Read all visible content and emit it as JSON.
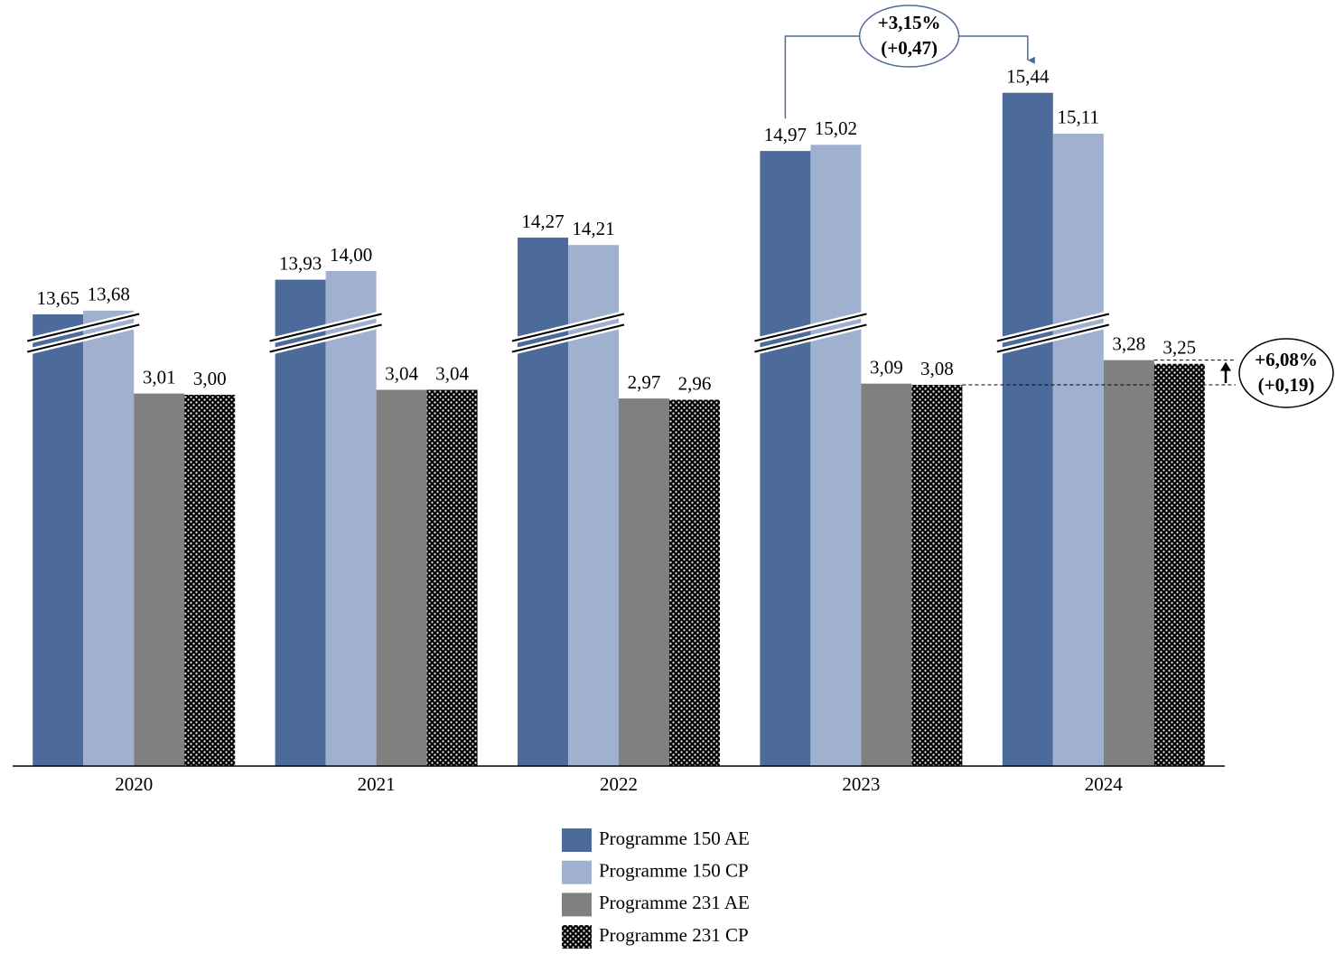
{
  "chart_data": {
    "type": "bar",
    "categories": [
      "2020",
      "2021",
      "2022",
      "2023",
      "2024"
    ],
    "series": [
      {
        "name": "Programme 150 AE",
        "color": "#4d6b9a",
        "values": [
          13.65,
          13.93,
          14.27,
          14.97,
          15.44
        ],
        "value_labels": [
          "13,65",
          "13,93",
          "14,27",
          "14,97",
          "15,44"
        ]
      },
      {
        "name": "Programme 150 CP",
        "color": "#9fb1cf",
        "values": [
          13.68,
          14.0,
          14.21,
          15.02,
          15.11
        ],
        "value_labels": [
          "13,68",
          "14,00",
          "14,21",
          "15,02",
          "15,11"
        ]
      },
      {
        "name": "Programme 231 AE",
        "color": "#808080",
        "values": [
          3.01,
          3.04,
          2.97,
          3.09,
          3.28
        ],
        "value_labels": [
          "3,01",
          "3,04",
          "2,97",
          "3,09",
          "3,28"
        ]
      },
      {
        "name": "Programme 231 CP",
        "color": "#000000",
        "pattern": "dots",
        "values": [
          3.0,
          3.04,
          2.96,
          3.08,
          3.25
        ],
        "value_labels": [
          "3,00",
          "3,04",
          "2,96",
          "3,08",
          "3,25"
        ]
      }
    ],
    "ylim": [
      0,
      16
    ],
    "axis_break": [
      3.5,
      13.5
    ],
    "annotations": [
      {
        "lines": [
          "+3,15%",
          "(+0,47)"
        ],
        "color": "#4d6b9a"
      },
      {
        "lines": [
          "+6,08%",
          "(+0,19)"
        ],
        "color": "#000000"
      }
    ]
  }
}
